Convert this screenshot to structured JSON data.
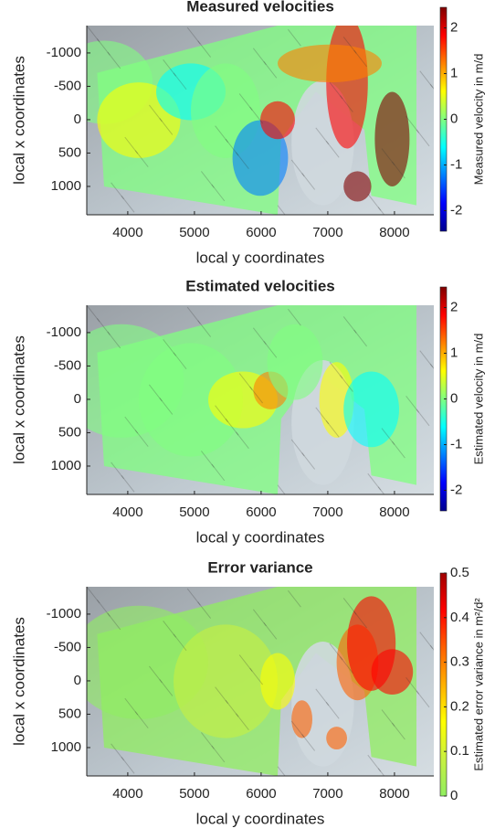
{
  "chart_data": [
    {
      "type": "map",
      "title": "Measured velocities",
      "xlabel": "local y coordinates",
      "ylabel": "local x coordinates",
      "xlim": [
        3385,
        8590
      ],
      "xticks": [
        4000,
        5000,
        6000,
        7000,
        8000
      ],
      "ylim": [
        -1410,
        1425
      ],
      "yreverse": true,
      "yticks": [
        -1000,
        -500,
        0,
        500,
        1000
      ],
      "colorbar_label": "Measured velocity in m/d",
      "clim": [
        -2.45,
        2.45
      ],
      "cticks": [
        -2,
        -1,
        0,
        1,
        2
      ],
      "colormap": [
        "#00008f",
        "#0000ff",
        "#0080ff",
        "#00ffff",
        "#80ff80",
        "#ffff00",
        "#ff8000",
        "#ff0000",
        "#800000"
      ]
    },
    {
      "type": "map",
      "title": "Estimated velocities",
      "xlabel": "local y coordinates",
      "ylabel": "local x coordinates",
      "xlim": [
        3385,
        8590
      ],
      "xticks": [
        4000,
        5000,
        6000,
        7000,
        8000
      ],
      "ylim": [
        -1410,
        1425
      ],
      "yreverse": true,
      "yticks": [
        -1000,
        -500,
        0,
        500,
        1000
      ],
      "colorbar_label": "Estimated velocity in m/d",
      "clim": [
        -2.45,
        2.45
      ],
      "cticks": [
        -2,
        -1,
        0,
        1,
        2
      ],
      "colormap": [
        "#00008f",
        "#0000ff",
        "#0080ff",
        "#00ffff",
        "#80ff80",
        "#ffff00",
        "#ff8000",
        "#ff0000",
        "#800000"
      ]
    },
    {
      "type": "map",
      "title": "Error variance",
      "xlabel": "local y coordinates",
      "ylabel": "local x coordinates",
      "xlim": [
        3385,
        8590
      ],
      "xticks": [
        4000,
        5000,
        6000,
        7000,
        8000
      ],
      "ylim": [
        -1410,
        1425
      ],
      "yreverse": true,
      "yticks": [
        -1000,
        -500,
        0,
        500,
        1000
      ],
      "colorbar_label": "Estimated error variance in m²/d²",
      "clim": [
        0,
        0.5
      ],
      "cticks": [
        0,
        0.1,
        0.2,
        0.3,
        0.4,
        0.5
      ],
      "colormap": [
        "#90ee60",
        "#c8f040",
        "#ffff00",
        "#ffb000",
        "#ff6000",
        "#ff0000",
        "#a00000"
      ]
    }
  ]
}
